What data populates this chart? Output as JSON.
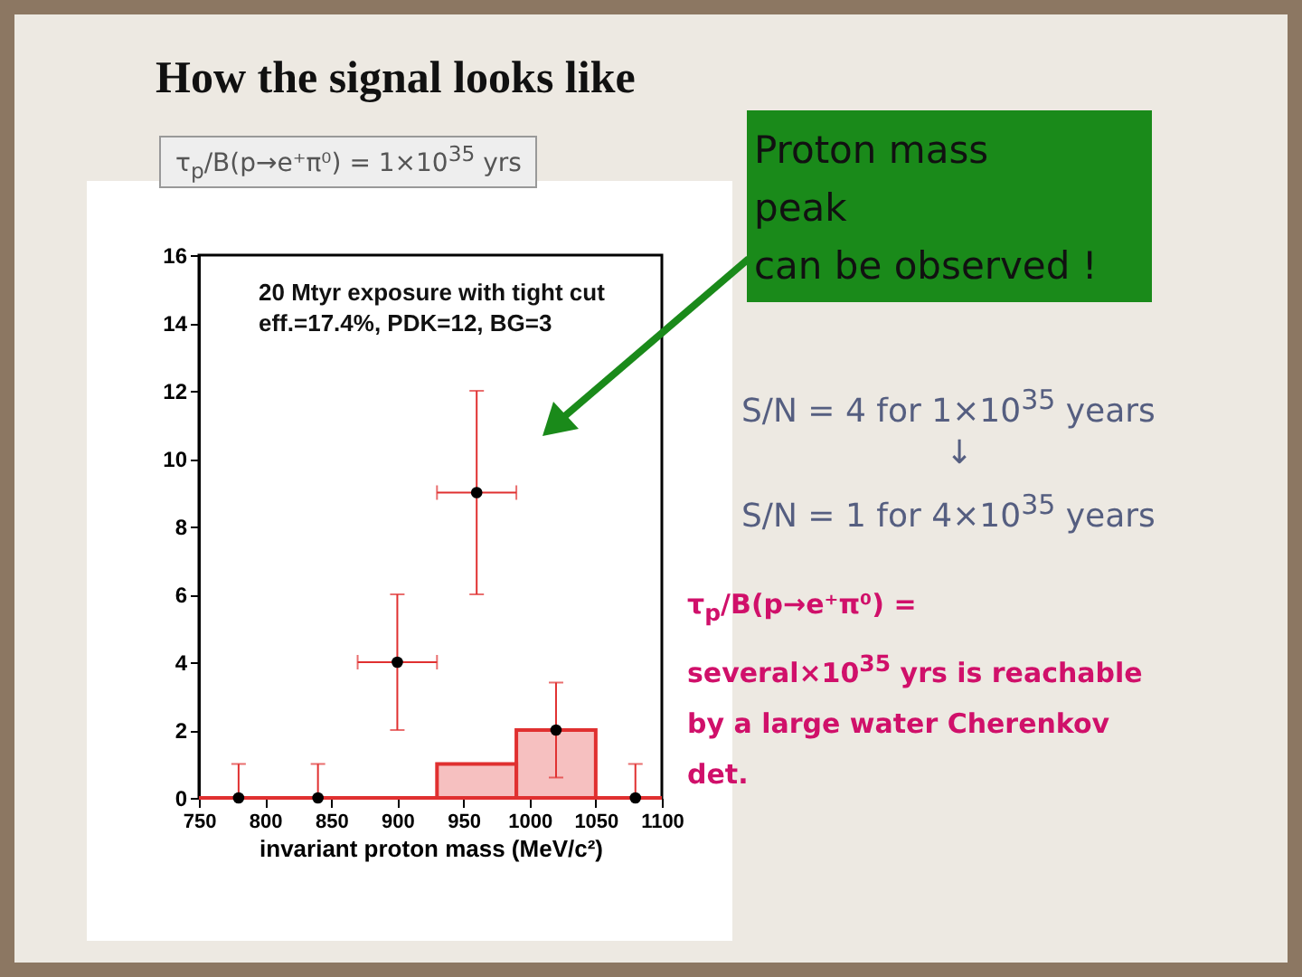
{
  "chart_data": {
    "type": "scatter",
    "title": "How the signal looks like",
    "xlabel": "invariant proton mass (MeV/c²)",
    "xlim": [
      750,
      1100
    ],
    "xticks": [
      750,
      800,
      850,
      900,
      950,
      1000,
      1050,
      1100
    ],
    "ylim": [
      0,
      16
    ],
    "yticks": [
      0,
      2,
      4,
      6,
      8,
      10,
      12,
      14,
      16
    ],
    "series": [
      {
        "type": "histogram",
        "color": "#e03030",
        "bins": [
          750,
          930,
          990,
          1050,
          1100
        ],
        "values": [
          0,
          1,
          2,
          0
        ]
      },
      {
        "type": "scatter",
        "color": "#000000",
        "x": [
          780,
          840,
          900,
          960,
          1020,
          1080
        ],
        "values": [
          0,
          0,
          4,
          9,
          2,
          0
        ],
        "errors": [
          [
            0,
            1
          ],
          [
            0,
            1
          ],
          [
            2,
            6
          ],
          [
            6,
            12
          ],
          [
            0.6,
            3.4
          ],
          [
            0,
            1
          ]
        ],
        "xerrors": [
          null,
          null,
          30,
          30,
          null,
          null
        ]
      }
    ],
    "annotations": [
      "τ$_{p}$/B(p→e⁺π⁰) = 1×10$^{35}$ yrs",
      "Proton mass\npeak\n can be observed !",
      "20 Mtyr exposure with tight cut\neff.=17.4%, PDK=12, BG=3",
      "S/N = 4 for 1×10$^{35}$ years",
      "↓",
      "S/N = 1 for 4×10$^{35}$ years",
      "τ$_{p}$/B(p→e⁺π⁰) =\nseveral×10$^{35}$ yrs is reachable\nby a large water Cherenkov\ndet."
    ]
  }
}
